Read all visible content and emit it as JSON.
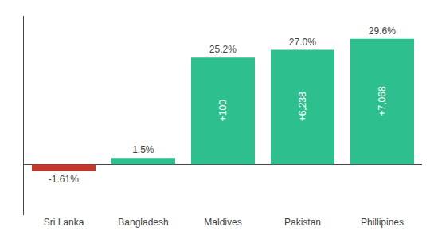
{
  "chart_data": {
    "type": "bar",
    "categories": [
      "Sri Lanka",
      "Bangladesh",
      "Maldives",
      "Pakistan",
      "Phillipines"
    ],
    "values": [
      -1.61,
      1.5,
      25.2,
      27.0,
      29.6
    ],
    "value_labels": [
      "-1.61%",
      "1.5%",
      "25.2%",
      "27.0%",
      "29.6%"
    ],
    "data_labels": true,
    "colors": [
      "#c0392b",
      "#2dbf8e",
      "#2dbf8e",
      "#2dbf8e",
      "#2dbf8e"
    ],
    "ylim": [
      -12,
      35
    ],
    "grid": false,
    "tick_labels": "x",
    "annotations": [
      {
        "x": "Maldives",
        "text": "+100"
      },
      {
        "x": "Pakistan",
        "text": "+6,238"
      },
      {
        "x": "Phillipines",
        "text": "+7,068"
      }
    ]
  }
}
